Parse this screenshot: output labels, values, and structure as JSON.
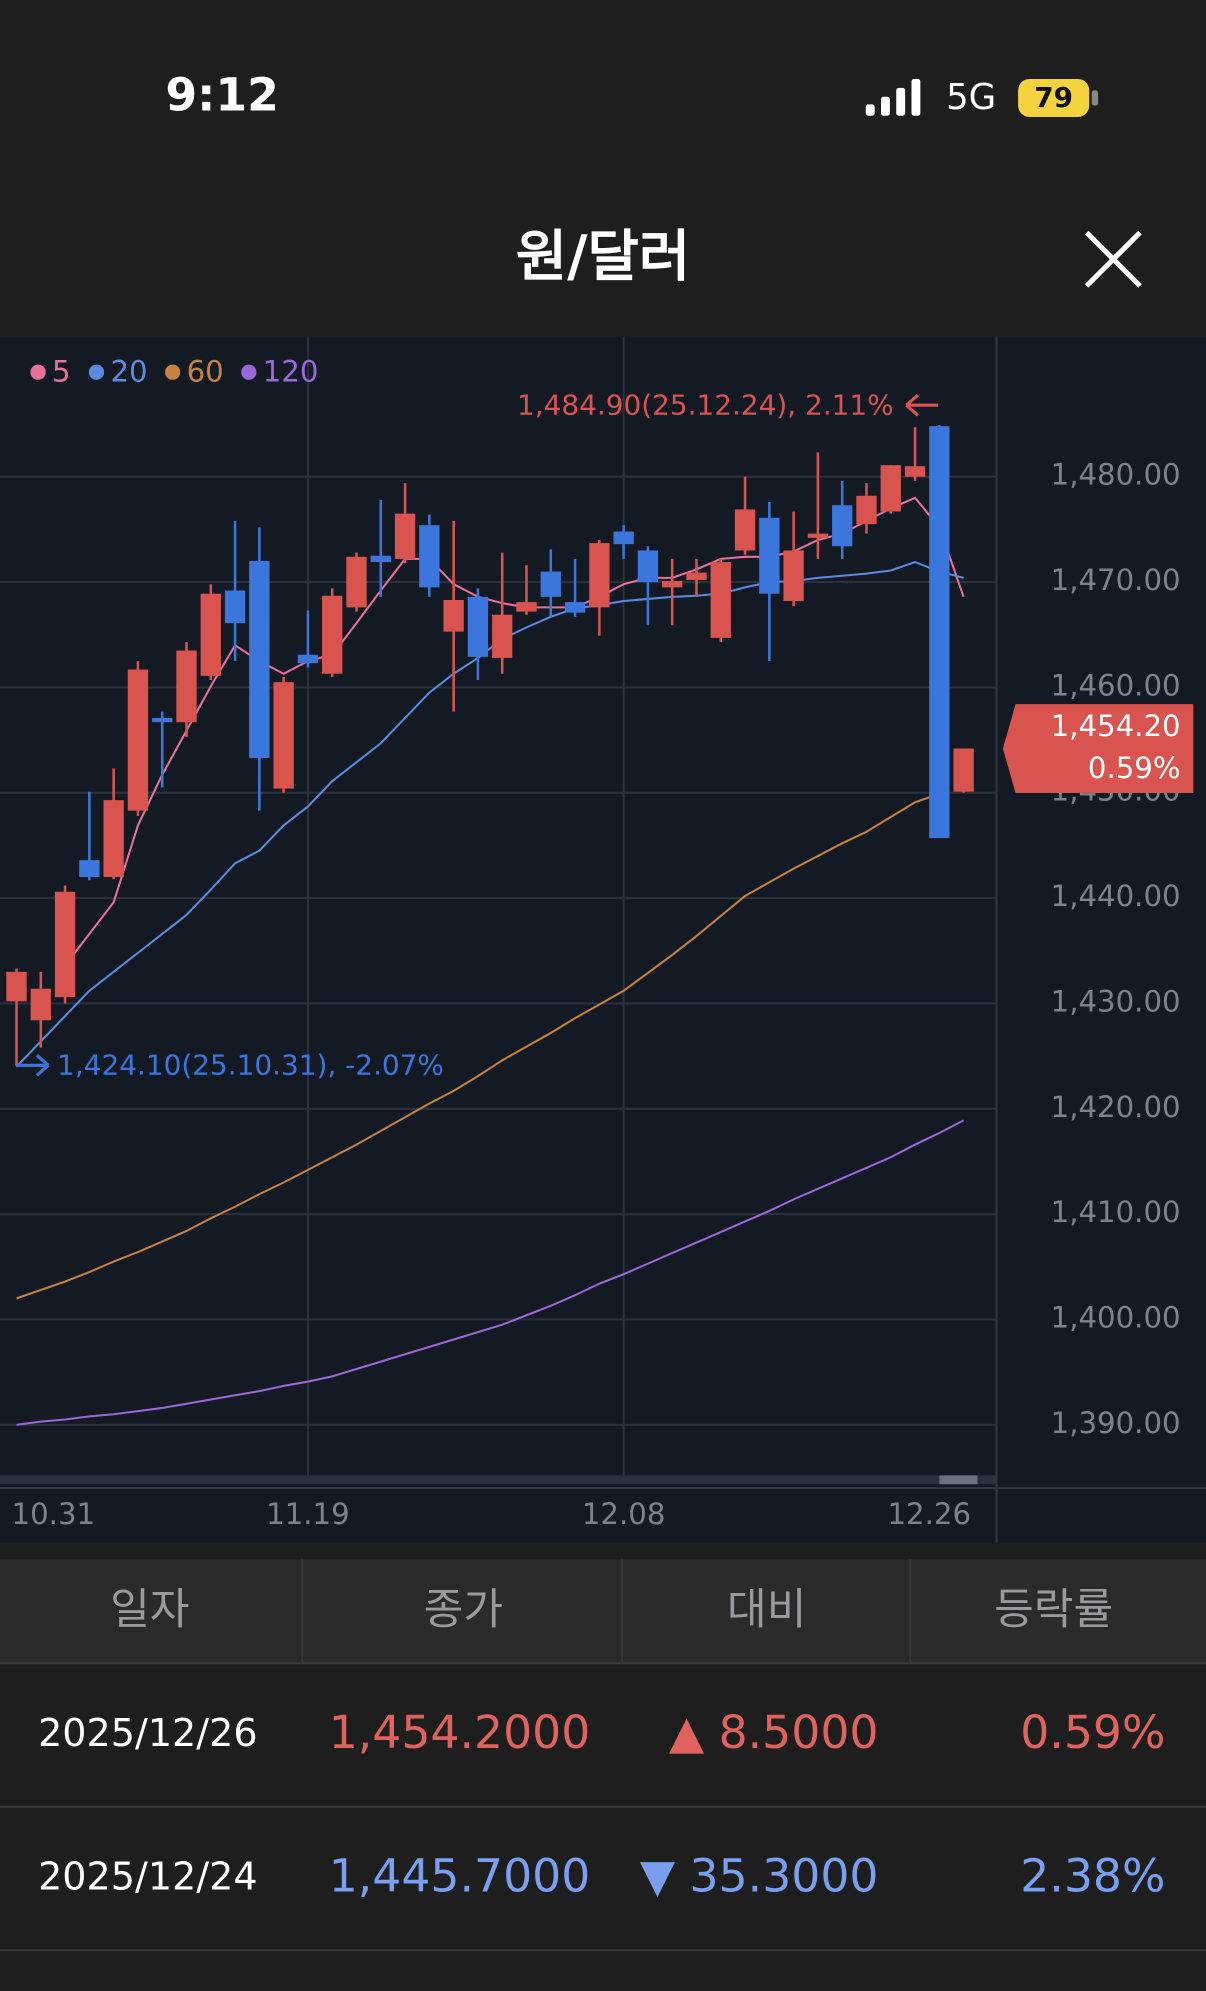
{
  "status_bar": {
    "time": "9:12",
    "network": "5G",
    "battery": 79
  },
  "header": {
    "title": "원/달러"
  },
  "chart_data": {
    "type": "candlestick",
    "categories": [
      "10.31",
      null,
      null,
      null,
      null,
      null,
      null,
      null,
      null,
      null,
      null,
      null,
      "11.19",
      null,
      null,
      null,
      null,
      null,
      null,
      null,
      null,
      null,
      null,
      null,
      null,
      "12.08",
      null,
      null,
      null,
      null,
      null,
      null,
      null,
      null,
      null,
      null,
      null,
      null,
      null,
      "12.26"
    ],
    "open": [
      1430.2,
      1428.4,
      1430.6,
      1443.6,
      1442.0,
      1448.3,
      1457.1,
      1456.7,
      1461.1,
      1469.2,
      1472.0,
      1450.4,
      1463.1,
      1461.3,
      1467.6,
      1472.5,
      1472.2,
      1475.4,
      1465.3,
      1468.6,
      1462.8,
      1467.2,
      1471.0,
      1468.1,
      1467.6,
      1474.8,
      1473.0,
      1469.5,
      1470.2,
      1464.7,
      1473.0,
      1476.1,
      1468.2,
      1474.2,
      1477.3,
      1475.5,
      1476.7,
      1480.0,
      1484.8,
      1450.1
    ],
    "high": [
      1433.3,
      1433.0,
      1441.2,
      1450.1,
      1452.3,
      1462.5,
      1457.7,
      1464.3,
      1469.8,
      1475.8,
      1475.2,
      1461.0,
      1467.3,
      1469.4,
      1472.8,
      1477.8,
      1479.4,
      1476.4,
      1475.8,
      1469.4,
      1472.8,
      1471.6,
      1473.1,
      1472.2,
      1474.0,
      1475.4,
      1473.4,
      1472.2,
      1472.2,
      1472.2,
      1480.0,
      1477.6,
      1476.7,
      1482.3,
      1479.6,
      1479.4,
      1481.1,
      1484.7,
      1484.9,
      1454.2
    ],
    "low": [
      1424.1,
      1425.8,
      1430.0,
      1441.7,
      1441.8,
      1447.8,
      1450.5,
      1455.3,
      1460.7,
      1462.5,
      1448.3,
      1450.0,
      1461.9,
      1461.0,
      1467.2,
      1468.6,
      1471.8,
      1468.6,
      1457.7,
      1460.7,
      1461.3,
      1466.9,
      1466.7,
      1466.7,
      1464.9,
      1472.2,
      1465.9,
      1465.9,
      1468.6,
      1464.3,
      1472.6,
      1462.5,
      1467.7,
      1472.2,
      1472.2,
      1474.6,
      1476.5,
      1479.6,
      1445.7,
      1450.0
    ],
    "close": [
      1433.0,
      1431.4,
      1440.6,
      1442.0,
      1449.3,
      1461.7,
      1456.7,
      1463.5,
      1468.9,
      1466.1,
      1453.3,
      1460.5,
      1462.3,
      1468.7,
      1472.4,
      1471.9,
      1476.5,
      1469.5,
      1468.3,
      1462.9,
      1466.9,
      1468.1,
      1468.6,
      1467.1,
      1473.7,
      1473.6,
      1470.0,
      1470.1,
      1470.9,
      1471.9,
      1476.9,
      1468.9,
      1473.0,
      1474.6,
      1473.4,
      1478.2,
      1481.1,
      1481.0,
      1445.7,
      1454.2
    ],
    "up_color": "#d9534f",
    "down_color": "#3a76dc",
    "series": [
      {
        "name": "5",
        "color": "#e8709c",
        "values": [
          null,
          null,
          1433.6,
          1436.6,
          1439.6,
          1446.9,
          1451.7,
          1455.9,
          1460.1,
          1464.0,
          1462.5,
          1461.3,
          1462.5,
          1463.1,
          1466.1,
          1469.2,
          1472.2,
          1472.2,
          1469.8,
          1468.6,
          1468.0,
          1467.6,
          1467.6,
          1467.6,
          1468.6,
          1469.8,
          1470.4,
          1470.4,
          1471.2,
          1472.2,
          1472.4,
          1472.4,
          1472.9,
          1474.0,
          1474.6,
          1475.8,
          1477.0,
          1478.0,
          1475.2,
          1468.6
        ]
      },
      {
        "name": "20",
        "color": "#5b8be0",
        "values": [
          1424.0,
          1426.4,
          1428.8,
          1431.2,
          1433.0,
          1434.8,
          1436.6,
          1438.4,
          1440.8,
          1443.3,
          1444.5,
          1446.9,
          1448.7,
          1451.1,
          1452.9,
          1454.7,
          1457.1,
          1459.5,
          1461.3,
          1462.8,
          1464.6,
          1465.7,
          1466.7,
          1467.5,
          1467.8,
          1468.2,
          1468.4,
          1468.6,
          1468.7,
          1468.9,
          1469.5,
          1470.0,
          1470.1,
          1470.4,
          1470.6,
          1470.8,
          1471.1,
          1471.9,
          1471.0,
          1470.4
        ]
      },
      {
        "name": "60",
        "color": "#c7823f",
        "values": [
          1402.0,
          1402.8,
          1403.6,
          1404.5,
          1405.5,
          1406.4,
          1407.4,
          1408.4,
          1409.6,
          1410.7,
          1411.9,
          1413.0,
          1414.2,
          1415.4,
          1416.6,
          1417.9,
          1419.2,
          1420.5,
          1421.7,
          1423.1,
          1424.6,
          1425.9,
          1427.2,
          1428.6,
          1429.9,
          1431.2,
          1432.9,
          1434.6,
          1436.4,
          1438.3,
          1440.2,
          1441.5,
          1442.8,
          1444.0,
          1445.2,
          1446.3,
          1447.7,
          1449.1,
          1449.9,
          null
        ]
      },
      {
        "name": "120",
        "color": "#9a68d8",
        "values": [
          1390.0,
          1390.3,
          1390.5,
          1390.8,
          1391.0,
          1391.3,
          1391.6,
          1392.0,
          1392.4,
          1392.8,
          1393.2,
          1393.7,
          1394.1,
          1394.6,
          1395.3,
          1396.0,
          1396.7,
          1397.4,
          1398.1,
          1398.8,
          1399.5,
          1400.4,
          1401.3,
          1402.3,
          1403.4,
          1404.3,
          1405.3,
          1406.3,
          1407.3,
          1408.3,
          1409.3,
          1410.3,
          1411.4,
          1412.4,
          1413.4,
          1414.4,
          1415.4,
          1416.6,
          1417.7,
          1418.9
        ]
      }
    ],
    "ylim": [
      1385.2,
      1493.3
    ],
    "yticks": [
      {
        "value": 1390,
        "label": "1,390.00"
      },
      {
        "value": 1400,
        "label": "1,400.00"
      },
      {
        "value": 1410,
        "label": "1,410.00"
      },
      {
        "value": 1420,
        "label": "1,420.00"
      },
      {
        "value": 1430,
        "label": "1,430.00"
      },
      {
        "value": 1440,
        "label": "1,440.00"
      },
      {
        "value": 1450,
        "label": "1,450.00"
      },
      {
        "value": 1460,
        "label": "1,460.00"
      },
      {
        "value": 1470,
        "label": "1,470.00"
      },
      {
        "value": 1480,
        "label": "1,480.00"
      }
    ],
    "grid": true,
    "max_label": "1,484.90(25.12.24), 2.11%",
    "min_label": "1,424.10(25.10.31), -2.07%",
    "last_price": {
      "label": "1,454.20",
      "change": "0.59%"
    }
  },
  "table": {
    "columns": [
      "일자",
      "종가",
      "대비",
      "등락률"
    ],
    "rows": [
      {
        "date": "2025/12/26",
        "close": "1,454.2000",
        "change": "▲ 8.5000",
        "rate": "0.59%",
        "color": "#e0625e"
      },
      {
        "date": "2025/12/24",
        "close": "1,445.7000",
        "change": "▼ 35.3000",
        "rate": "2.38%",
        "color": "#7a9ff0"
      }
    ]
  }
}
